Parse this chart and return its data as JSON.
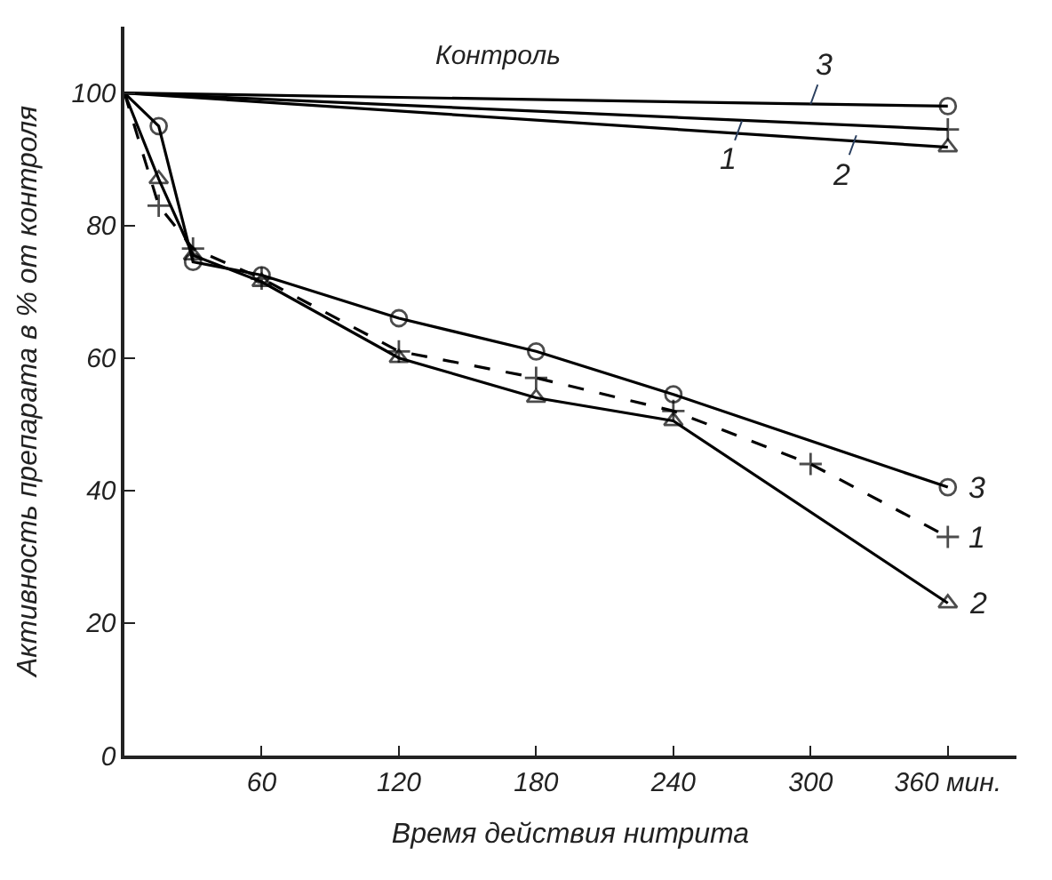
{
  "chart_data": {
    "type": "line",
    "xlabel": "Время действия нитрита",
    "ylabel": "Активность препарата в % от контроля",
    "xlim": [
      0,
      390
    ],
    "xticks": [
      60,
      120,
      180,
      240,
      300,
      {
        "value": 360,
        "label": "360 мин."
      }
    ],
    "ylim": [
      0,
      110
    ],
    "yticks": [
      0,
      20,
      40,
      60,
      80,
      100
    ],
    "legend": false,
    "annotations": [
      "Контроль",
      {
        "text": "3",
        "x": 300,
        "y": 98.3
      },
      {
        "text": "1",
        "x": 270,
        "y": 95.8
      },
      {
        "text": "2",
        "x": 320,
        "y": 93.6
      }
    ],
    "series": [
      {
        "name": "3",
        "color": "#000000",
        "marker": "circle",
        "line_style": "solid",
        "x": [
          0,
          15,
          30,
          60,
          120,
          180,
          240,
          360
        ],
        "values": [
          100,
          95,
          74.5,
          72.5,
          66,
          61,
          54.5,
          40.5
        ]
      },
      {
        "name": "1",
        "color": "#000000",
        "marker": "cross",
        "line_style": "dashed",
        "x": [
          0,
          15,
          30,
          60,
          120,
          180,
          240,
          300,
          360
        ],
        "values": [
          100,
          83,
          76.5,
          72,
          61,
          57,
          52,
          44,
          33
        ]
      },
      {
        "name": "2",
        "color": "#000000",
        "marker": "triangle",
        "line_style": "solid",
        "x": [
          0,
          15,
          30,
          60,
          120,
          180,
          240,
          360
        ],
        "values": [
          100,
          87,
          75.5,
          71.5,
          60,
          54,
          50.5,
          23
        ]
      },
      {
        "color": "#000000",
        "marker": "circle",
        "line_style": "solid",
        "x": [
          0,
          360
        ],
        "values": [
          100,
          98
        ]
      },
      {
        "color": "#000000",
        "marker": "cross",
        "line_style": "solid",
        "x": [
          0,
          360
        ],
        "values": [
          100,
          94.5
        ]
      },
      {
        "color": "#000000",
        "marker": "triangle",
        "line_style": "solid",
        "x": [
          0,
          360
        ],
        "values": [
          100,
          91.8
        ]
      }
    ]
  }
}
